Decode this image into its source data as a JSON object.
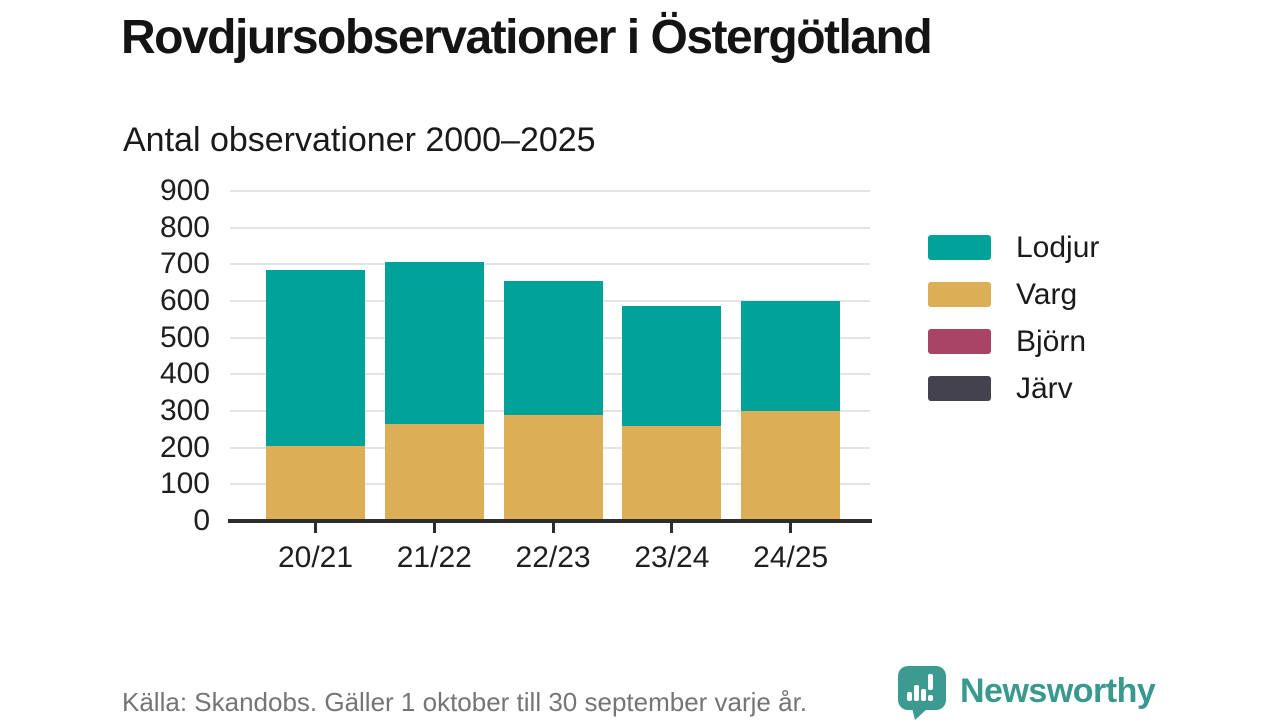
{
  "header": {
    "title": "Rovdjursobservationer i Östergötland",
    "subtitle": "Antal observationer 2000–2025"
  },
  "chart_data": {
    "type": "bar",
    "stacked": true,
    "title": "Rovdjursobservationer i Östergötland",
    "subtitle": "Antal observationer 2000–2025",
    "categories": [
      "20/21",
      "21/22",
      "22/23",
      "23/24",
      "24/25"
    ],
    "series": [
      {
        "name": "Lodjur",
        "color": "#00a29a",
        "values": [
          480,
          440,
          365,
          325,
          300
        ]
      },
      {
        "name": "Varg",
        "color": "#dcae55",
        "values": [
          200,
          260,
          285,
          255,
          295
        ]
      },
      {
        "name": "Björn",
        "color": "#a84465",
        "values": [
          0,
          0,
          0,
          0,
          0
        ]
      },
      {
        "name": "Järv",
        "color": "#454250",
        "values": [
          0,
          0,
          0,
          0,
          0
        ]
      }
    ],
    "stack_totals": [
      680,
      700,
      650,
      580,
      595
    ],
    "y_ticks": [
      0,
      100,
      200,
      300,
      400,
      500,
      600,
      700,
      800,
      900
    ],
    "ylim": [
      0,
      900
    ],
    "xlabel": "",
    "ylabel": "",
    "grid": true,
    "legend_position": "right",
    "axis_color": "#2d2d2d",
    "gridline_color": "#e4e4e4"
  },
  "footer": {
    "source": "Källa: Skandobs. Gäller 1 oktober till 30 september varje år.",
    "brand": "Newsworthy",
    "brand_color": "#3a998e",
    "logo_icon": "bar-chart-speech-bubble-icon"
  }
}
